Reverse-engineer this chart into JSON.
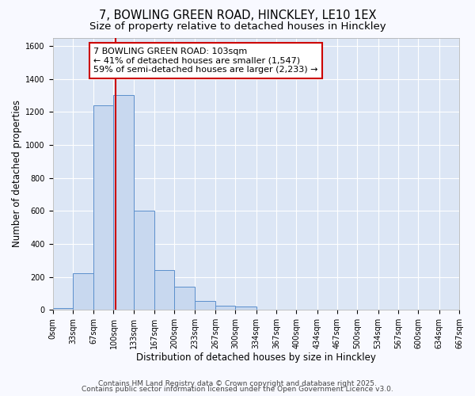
{
  "title1": "7, BOWLING GREEN ROAD, HINCKLEY, LE10 1EX",
  "title2": "Size of property relative to detached houses in Hinckley",
  "xlabel": "Distribution of detached houses by size in Hinckley",
  "ylabel": "Number of detached properties",
  "bin_edges": [
    0,
    33,
    67,
    100,
    133,
    167,
    200,
    233,
    267,
    300,
    334,
    367,
    400,
    434,
    467,
    500,
    534,
    567,
    600,
    634,
    667
  ],
  "bar_heights": [
    10,
    220,
    1240,
    1300,
    600,
    240,
    140,
    55,
    25,
    20,
    0,
    0,
    0,
    0,
    0,
    0,
    0,
    0,
    0,
    0
  ],
  "bar_color": "#c8d8ef",
  "bar_edge_color": "#5b8fcc",
  "vline_x": 103,
  "vline_color": "#cc0000",
  "ylim": [
    0,
    1650
  ],
  "yticks": [
    0,
    200,
    400,
    600,
    800,
    1000,
    1200,
    1400,
    1600
  ],
  "bg_color": "#dce6f5",
  "grid_color": "#ffffff",
  "annotation_title": "7 BOWLING GREEN ROAD: 103sqm",
  "annotation_line1": "← 41% of detached houses are smaller (1,547)",
  "annotation_line2": "59% of semi-detached houses are larger (2,233) →",
  "annotation_box_facecolor": "#ffffff",
  "annotation_border_color": "#cc0000",
  "footer1": "Contains HM Land Registry data © Crown copyright and database right 2025.",
  "footer2": "Contains public sector information licensed under the Open Government Licence v3.0.",
  "title_fontsize": 10.5,
  "subtitle_fontsize": 9.5,
  "tick_fontsize": 7,
  "label_fontsize": 8.5,
  "annotation_fontsize": 8,
  "footer_fontsize": 6.5,
  "fig_bg": "#f8f9ff"
}
